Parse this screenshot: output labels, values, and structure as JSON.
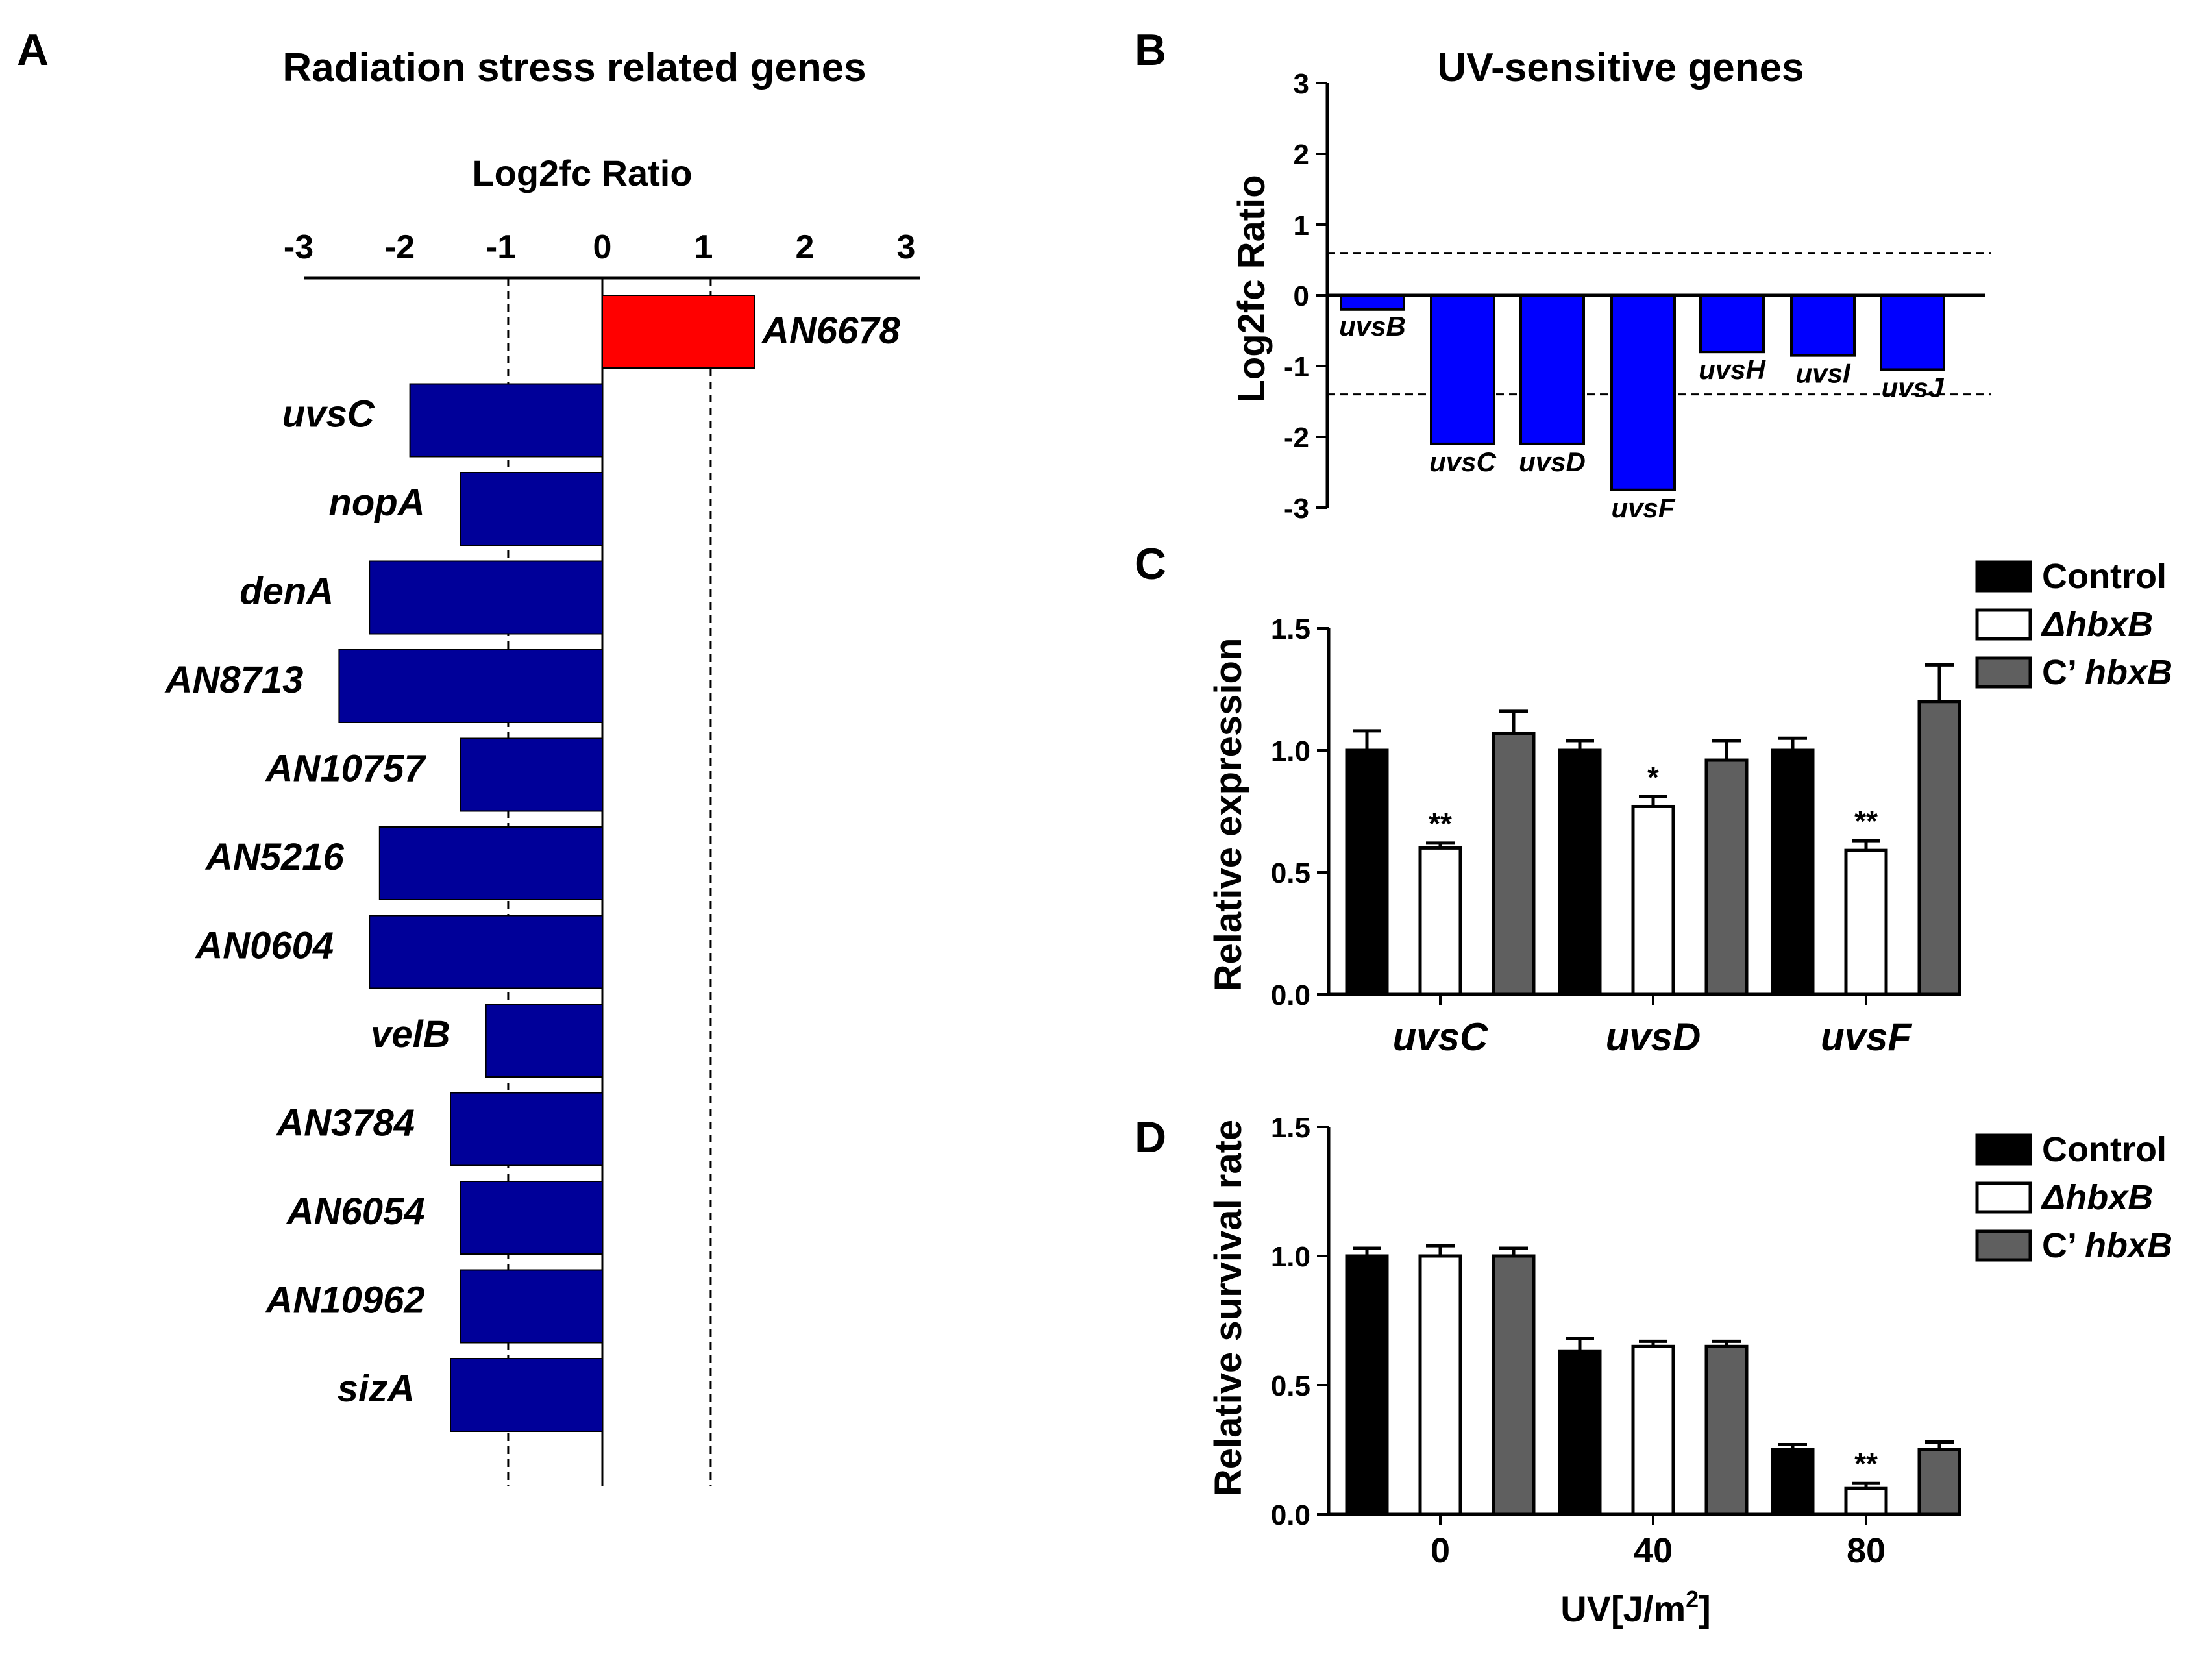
{
  "colors": {
    "up": "#ff0000",
    "down_a": "#000099",
    "down_b": "#0000ff",
    "control": "#000000",
    "mutant": "#ffffff",
    "complement": "#5f5f5f"
  },
  "chart_data": [
    {
      "panel": "A",
      "type": "bar",
      "orientation": "horizontal",
      "title": "Radiation stress related genes",
      "xlabel": "Log2fc Ratio",
      "xlim": [
        -3,
        3
      ],
      "xticks": [
        "-3",
        "-2",
        "-1",
        "0",
        "1",
        "2",
        "3"
      ],
      "threshold_lines": [
        -0.93,
        1.07
      ],
      "categories": [
        "AN6678",
        "uvsC",
        "nopA",
        "denA",
        "AN8713",
        "AN10757",
        "AN5216",
        "AN0604",
        "velB",
        "AN3784",
        "AN6054",
        "AN10962",
        "sizA"
      ],
      "values": [
        1.5,
        -1.9,
        -1.4,
        -2.3,
        -2.6,
        -1.4,
        -2.2,
        -2.3,
        -1.15,
        -1.5,
        -1.4,
        -1.4,
        -1.5
      ]
    },
    {
      "panel": "B",
      "type": "bar",
      "title": "UV-sensitive genes",
      "ylabel": "Log2fc Ratio",
      "ylim": [
        -3,
        3
      ],
      "yticks": [
        "3",
        "2",
        "1",
        "0",
        "-1",
        "-2",
        "-3"
      ],
      "threshold_lines": [
        0.6,
        -1.4
      ],
      "categories": [
        "uvsB",
        "uvsC",
        "uvsD",
        "uvsF",
        "uvsH",
        "uvsI",
        "uvsJ"
      ],
      "values": [
        -0.2,
        -2.1,
        -2.1,
        -2.75,
        -0.8,
        -0.85,
        -1.05
      ]
    },
    {
      "panel": "C",
      "type": "bar",
      "ylabel": "Relative expression",
      "ylim": [
        0,
        1.5
      ],
      "yticks": [
        "0.0",
        "0.5",
        "1.0",
        "1.5"
      ],
      "categories": [
        "uvsC",
        "uvsD",
        "uvsF"
      ],
      "legend": [
        "Control",
        "ΔhbxB",
        "C’ hbxB"
      ],
      "series": [
        {
          "name": "Control",
          "values": [
            1.0,
            1.0,
            1.0
          ],
          "errors": [
            0.08,
            0.04,
            0.05
          ]
        },
        {
          "name": "ΔhbxB",
          "values": [
            0.6,
            0.77,
            0.59
          ],
          "errors": [
            0.02,
            0.04,
            0.04
          ],
          "marks": [
            "**",
            "*",
            "**"
          ]
        },
        {
          "name": "C’ hbxB",
          "values": [
            1.07,
            0.96,
            1.2
          ],
          "errors": [
            0.09,
            0.08,
            0.15
          ]
        }
      ]
    },
    {
      "panel": "D",
      "type": "bar",
      "ylabel": "Relative survival rate",
      "xlabel": "UV[J/m²]",
      "ylim": [
        0,
        1.5
      ],
      "yticks": [
        "0.0",
        "0.5",
        "1.0",
        "1.5"
      ],
      "categories": [
        "0",
        "40",
        "80"
      ],
      "legend": [
        "Control",
        "ΔhbxB",
        "C’ hbxB"
      ],
      "series": [
        {
          "name": "Control",
          "values": [
            1.0,
            0.63,
            0.25
          ],
          "errors": [
            0.03,
            0.05,
            0.02
          ]
        },
        {
          "name": "ΔhbxB",
          "values": [
            1.0,
            0.65,
            0.1
          ],
          "errors": [
            0.04,
            0.02,
            0.02
          ],
          "marks": [
            "",
            "",
            "**"
          ]
        },
        {
          "name": "C’ hbxB",
          "values": [
            1.0,
            0.65,
            0.25
          ],
          "errors": [
            0.03,
            0.02,
            0.03
          ]
        }
      ]
    }
  ]
}
